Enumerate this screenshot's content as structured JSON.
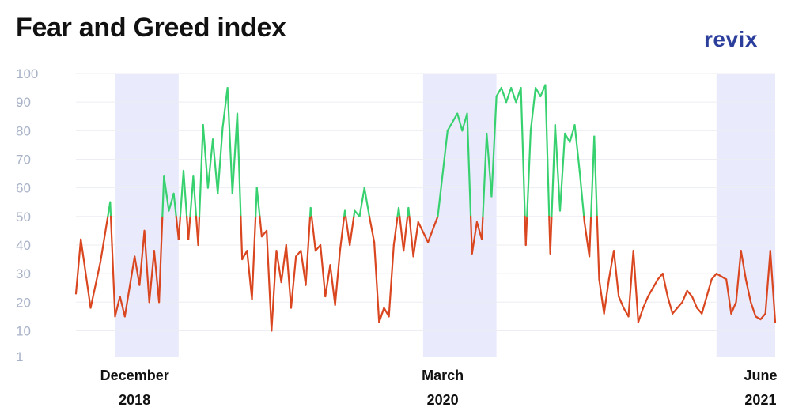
{
  "header": {
    "title": "Fear and Greed index",
    "brand": "revix"
  },
  "colors": {
    "greed": "#38d170",
    "fear": "#d9461f",
    "band": "#e9eafc",
    "grid": "#eceef3"
  },
  "chart_data": {
    "type": "line",
    "title": "Fear and Greed index",
    "xlabel": "",
    "ylabel": "",
    "threshold": 50,
    "ylim": [
      1,
      100
    ],
    "yticks": [
      1,
      10,
      20,
      30,
      40,
      50,
      60,
      70,
      80,
      90,
      100
    ],
    "grid": true,
    "x_ticks": [
      {
        "month": "December",
        "year": "2018",
        "x_index": 12
      },
      {
        "month": "March",
        "year": "2020",
        "x_index": 75
      },
      {
        "month": "June",
        "year": "2021",
        "x_index": 140
      }
    ],
    "highlight_ranges": [
      {
        "from_index": 8,
        "to_index": 21
      },
      {
        "from_index": 71,
        "to_index": 86
      },
      {
        "from_index": 131,
        "to_index": 143
      }
    ],
    "x": [
      0,
      1,
      3,
      4,
      5,
      7,
      8,
      9,
      10,
      12,
      13,
      14,
      15,
      16,
      17,
      18,
      19,
      20,
      21,
      22,
      23,
      24,
      25,
      26,
      27,
      28,
      29,
      30,
      31,
      32,
      33,
      34,
      35,
      36,
      37,
      38,
      39,
      40,
      41,
      42,
      43,
      44,
      45,
      46,
      47,
      48,
      49,
      50,
      51,
      52,
      53,
      54,
      55,
      56,
      57,
      58,
      59,
      60,
      61,
      62,
      63,
      64,
      65,
      66,
      67,
      68,
      69,
      70,
      72,
      74,
      76,
      78,
      79,
      80,
      81,
      82,
      83,
      84,
      85,
      86,
      87,
      88,
      89,
      90,
      91,
      92,
      93,
      94,
      95,
      96,
      97,
      98,
      99,
      100,
      101,
      102,
      103,
      104,
      105,
      106,
      107,
      108,
      109,
      110,
      111,
      112,
      113,
      114,
      115,
      116,
      117,
      118,
      119,
      120,
      121,
      122,
      123,
      124,
      125,
      126,
      127,
      128,
      129,
      130,
      131,
      132,
      133,
      134,
      135,
      136,
      137,
      138,
      139,
      140,
      141,
      142,
      143
    ],
    "values": [
      23,
      42,
      18,
      26,
      34,
      55,
      15,
      22,
      15,
      36,
      26,
      45,
      20,
      38,
      20,
      64,
      52,
      58,
      42,
      66,
      42,
      64,
      40,
      82,
      60,
      77,
      58,
      81,
      95,
      58,
      86,
      35,
      38,
      21,
      60,
      43,
      45,
      10,
      38,
      27,
      40,
      18,
      36,
      38,
      26,
      53,
      38,
      40,
      22,
      33,
      19,
      38,
      52,
      40,
      52,
      50,
      60,
      50,
      41,
      13,
      18,
      15,
      40,
      53,
      38,
      53,
      36,
      48,
      41,
      50,
      80,
      86,
      80,
      86,
      37,
      48,
      42,
      79,
      57,
      92,
      95,
      90,
      95,
      90,
      95,
      40,
      80,
      95,
      92,
      96,
      37,
      82,
      52,
      79,
      76,
      82,
      66,
      48,
      36,
      78,
      28,
      16,
      28,
      38,
      22,
      18,
      15,
      38,
      13,
      18,
      22,
      25,
      28,
      30,
      22,
      16,
      18,
      20,
      24,
      22,
      18,
      16,
      22,
      28,
      30,
      29,
      28,
      16,
      20,
      38,
      28,
      20,
      15,
      14,
      16,
      38,
      13
    ]
  }
}
